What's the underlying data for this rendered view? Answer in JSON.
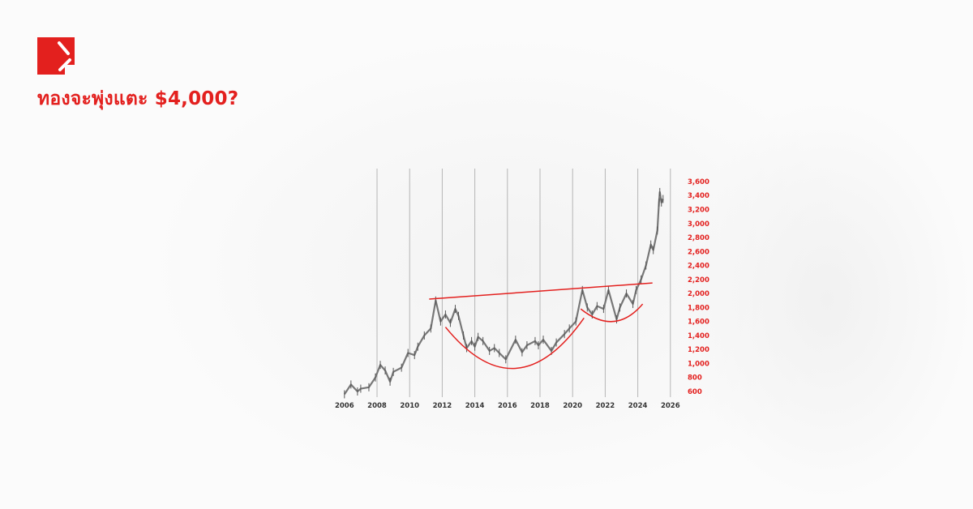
{
  "header": {
    "title": "ทองจะพุ่งแตะ $4,000?",
    "brand_color": "#e3201e"
  },
  "chart_data": {
    "type": "line",
    "title": "",
    "xlabel": "",
    "ylabel": "",
    "xlim": [
      2006,
      2026
    ],
    "ylim": [
      600,
      3600
    ],
    "grid": true,
    "x_ticks": [
      "2006",
      "2008",
      "2010",
      "2012",
      "2014",
      "2016",
      "2018",
      "2020",
      "2022",
      "2024",
      "2026"
    ],
    "y_ticks": [
      "600",
      "800",
      "1,000",
      "1,200",
      "1,400",
      "1,600",
      "1,800",
      "2,000",
      "2,200",
      "2,400",
      "2,600",
      "2,800",
      "3,000",
      "3,200",
      "3,400",
      "3,600"
    ],
    "series": [
      {
        "color": "#777777",
        "x": [
          2006.0,
          2006.4,
          2006.8,
          2007.0,
          2007.5,
          2007.9,
          2008.2,
          2008.5,
          2008.8,
          2009.0,
          2009.5,
          2009.9,
          2010.3,
          2010.5,
          2010.9,
          2011.3,
          2011.6,
          2011.9,
          2012.2,
          2012.5,
          2012.8,
          2013.0,
          2013.3,
          2013.5,
          2013.8,
          2014.0,
          2014.2,
          2014.5,
          2014.9,
          2015.2,
          2015.5,
          2015.9,
          2016.5,
          2016.9,
          2017.2,
          2017.7,
          2017.9,
          2018.2,
          2018.7,
          2019.0,
          2019.5,
          2019.8,
          2020.2,
          2020.6,
          2020.9,
          2021.2,
          2021.5,
          2021.9,
          2022.2,
          2022.7,
          2022.9,
          2023.3,
          2023.7,
          2023.9,
          2024.2,
          2024.5,
          2024.8,
          2024.95,
          2025.2,
          2025.3,
          2025.35,
          2025.45,
          2025.55
        ],
        "y": [
          560,
          700,
          600,
          640,
          660,
          800,
          980,
          900,
          740,
          880,
          940,
          1150,
          1120,
          1240,
          1400,
          1500,
          1900,
          1600,
          1700,
          1580,
          1780,
          1680,
          1400,
          1220,
          1320,
          1240,
          1380,
          1320,
          1180,
          1220,
          1150,
          1060,
          1340,
          1160,
          1260,
          1320,
          1260,
          1340,
          1180,
          1300,
          1420,
          1500,
          1600,
          2050,
          1800,
          1700,
          1820,
          1780,
          2050,
          1630,
          1800,
          2000,
          1850,
          2050,
          2200,
          2400,
          2700,
          2620,
          2900,
          3300,
          3450,
          3300,
          3350
        ]
      }
    ],
    "annotations": [
      {
        "type": "resistance-line",
        "color": "#e3201e",
        "x": [
          2011.2,
          2024.9
        ],
        "y": [
          1920,
          2150
        ]
      },
      {
        "type": "cup",
        "color": "#e3201e",
        "x": [
          2012.2,
          2016.5,
          2020.7
        ],
        "y": [
          1520,
          930,
          1650
        ]
      },
      {
        "type": "handle",
        "color": "#e3201e",
        "x": [
          2020.5,
          2022.5,
          2024.3
        ],
        "y": [
          1780,
          1600,
          1850
        ]
      }
    ]
  }
}
